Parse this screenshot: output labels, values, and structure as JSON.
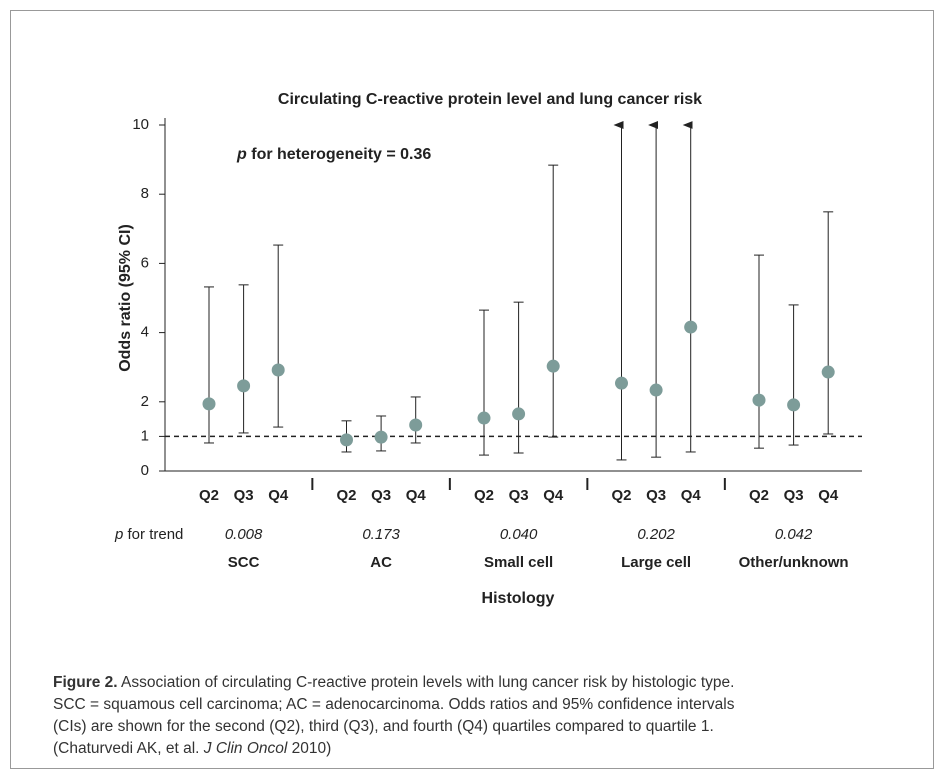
{
  "chart_data": {
    "type": "errorbar",
    "title": "Circulating C-reactive protein level and lung cancer risk",
    "y_label": "Odds ratio (95% CI)",
    "x_label": "Histology",
    "annotation": {
      "italic": "p",
      "text": "for heterogeneity = 0.36"
    },
    "trend_label": {
      "italic": "p",
      "text": "for trend"
    },
    "categories": [
      "Q2",
      "Q3",
      "Q4",
      "Q2",
      "Q3",
      "Q4",
      "Q2",
      "Q3",
      "Q4",
      "Q2",
      "Q3",
      "Q4",
      "Q2",
      "Q3",
      "Q4"
    ],
    "groups": [
      {
        "name": "SCC",
        "p_trend": "0.008"
      },
      {
        "name": "AC",
        "p_trend": "0.173"
      },
      {
        "name": "Small cell",
        "p_trend": "0.040"
      },
      {
        "name": "Large cell",
        "p_trend": "0.202"
      },
      {
        "name": "Other/unknown",
        "p_trend": "0.042"
      }
    ],
    "values": [
      1.94,
      2.46,
      2.92,
      0.9,
      0.98,
      1.33,
      1.53,
      1.65,
      3.03,
      2.54,
      2.34,
      4.16,
      2.05,
      1.91,
      2.86
    ],
    "lower": [
      0.81,
      1.1,
      1.27,
      0.55,
      0.58,
      0.81,
      0.46,
      0.52,
      0.98,
      0.32,
      0.4,
      0.55,
      0.66,
      0.75,
      1.07
    ],
    "upper": [
      5.32,
      5.38,
      6.53,
      1.45,
      1.59,
      2.14,
      4.65,
      4.88,
      8.84,
      10,
      10,
      10,
      6.24,
      4.8,
      7.49
    ],
    "color": "#7d9c99",
    "reference_line": 1,
    "ylim": [
      0,
      10
    ],
    "yticks": [
      0,
      1,
      2,
      4,
      6,
      8,
      10
    ]
  },
  "caption": {
    "label": "Figure 2.",
    "line1": " Association of circulating C-reactive protein levels with lung cancer risk by histologic type.",
    "line2": "SCC = squamous cell carcinoma; AC = adenocarcinoma. Odds ratios and 95% confidence intervals",
    "line3": "(CIs) are shown for the second (Q2), third (Q3), and fourth (Q4) quartiles compared to quartile 1.",
    "line4a": "(Chaturvedi AK, et al. ",
    "line4b": "J Clin Oncol",
    "line4c": " 2010)"
  }
}
